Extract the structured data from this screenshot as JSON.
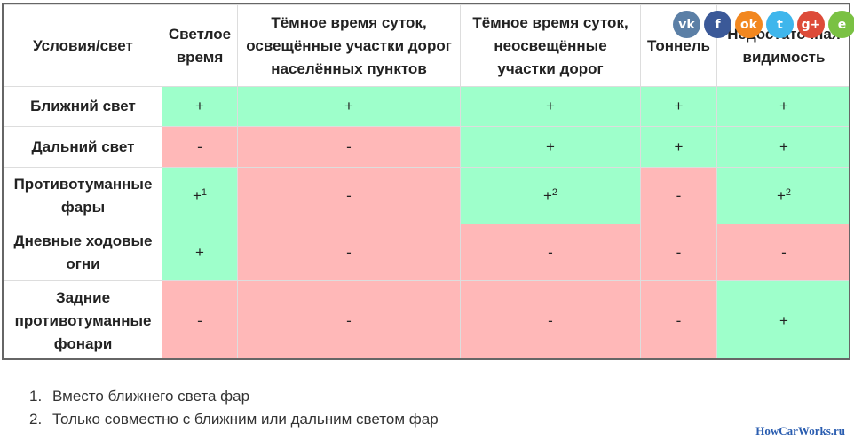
{
  "table": {
    "headers": [
      "Условия/свет",
      "Светлое время",
      "Тёмное время суток, освещённые участки дорог населённых пунктов",
      "Тёмное время суток, неосвещённые участки дорог",
      "Тоннель",
      "Недостаточная видимость"
    ],
    "rows": [
      {
        "label": "Ближний свет",
        "cells": [
          {
            "v": "+",
            "sup": "",
            "c": "g"
          },
          {
            "v": "+",
            "sup": "",
            "c": "g"
          },
          {
            "v": "+",
            "sup": "",
            "c": "g"
          },
          {
            "v": "+",
            "sup": "",
            "c": "g"
          },
          {
            "v": "+",
            "sup": "",
            "c": "g"
          }
        ]
      },
      {
        "label": "Дальний свет",
        "cells": [
          {
            "v": "-",
            "sup": "",
            "c": "r"
          },
          {
            "v": "-",
            "sup": "",
            "c": "r"
          },
          {
            "v": "+",
            "sup": "",
            "c": "g"
          },
          {
            "v": "+",
            "sup": "",
            "c": "g"
          },
          {
            "v": "+",
            "sup": "",
            "c": "g"
          }
        ]
      },
      {
        "label": "Противотуманные фары",
        "cells": [
          {
            "v": "+",
            "sup": "1",
            "c": "g"
          },
          {
            "v": "-",
            "sup": "",
            "c": "r"
          },
          {
            "v": "+",
            "sup": "2",
            "c": "g"
          },
          {
            "v": "-",
            "sup": "",
            "c": "r"
          },
          {
            "v": "+",
            "sup": "2",
            "c": "g"
          }
        ]
      },
      {
        "label": "Дневные ходовые огни",
        "cells": [
          {
            "v": "+",
            "sup": "",
            "c": "g"
          },
          {
            "v": "-",
            "sup": "",
            "c": "r"
          },
          {
            "v": "-",
            "sup": "",
            "c": "r"
          },
          {
            "v": "-",
            "sup": "",
            "c": "r"
          },
          {
            "v": "-",
            "sup": "",
            "c": "r"
          }
        ]
      },
      {
        "label": "Задние противотуманные фонари",
        "cells": [
          {
            "v": "-",
            "sup": "",
            "c": "r"
          },
          {
            "v": "-",
            "sup": "",
            "c": "r"
          },
          {
            "v": "-",
            "sup": "",
            "c": "r"
          },
          {
            "v": "-",
            "sup": "",
            "c": "r"
          },
          {
            "v": "+",
            "sup": "",
            "c": "g"
          }
        ]
      }
    ]
  },
  "notes": [
    {
      "num": "1.",
      "text": "Вместо ближнего света фар"
    },
    {
      "num": "2.",
      "text": "Только совместно с ближним или дальним светом фар"
    }
  ],
  "social": [
    {
      "name": "vk-icon",
      "glyph": "vk",
      "color": "#5b7fa6"
    },
    {
      "name": "facebook-icon",
      "glyph": "f",
      "color": "#3b5998"
    },
    {
      "name": "odnoklassniki-icon",
      "glyph": "ok",
      "color": "#f2871f"
    },
    {
      "name": "twitter-icon",
      "glyph": "t",
      "color": "#3fb6ec"
    },
    {
      "name": "google-plus-icon",
      "glyph": "g+",
      "color": "#dd4b39"
    },
    {
      "name": "evernote-icon",
      "glyph": "e",
      "color": "#7ac143"
    }
  ],
  "colors": {
    "allowed": "#9effcb",
    "forbidden": "#ffb8b8"
  },
  "watermark": "HowCarWorks.ru"
}
